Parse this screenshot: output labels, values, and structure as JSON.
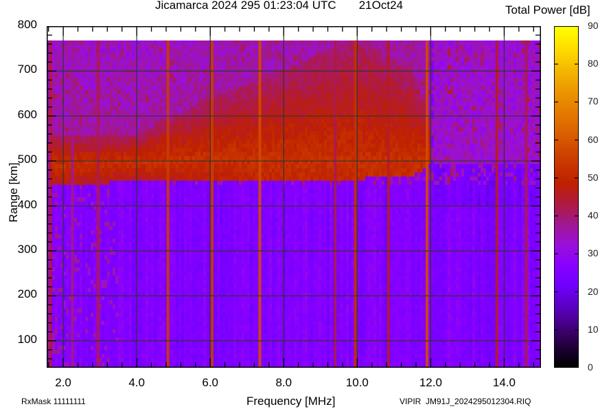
{
  "header": {
    "title": "Jicamarca 2024 295 01:23:04 UTC       21Oct24",
    "colorbar_title": "Total Power [dB]"
  },
  "footer": {
    "rxmask": "RxMask 11111111",
    "file_id": "VIPIR  JM91J_2024295012304.RIQ"
  },
  "chart_data": {
    "type": "heatmap",
    "title": "Jicamarca 2024 295 01:23:04 UTC 21Oct24",
    "xlabel": "Frequency [MHz]",
    "ylabel": "Range [km]",
    "colorbar_label": "Total Power [dB]",
    "xlim": [
      1.55,
      15.0
    ],
    "ylim": [
      40,
      800
    ],
    "clim": [
      0,
      90
    ],
    "x_ticks": [
      "2.0",
      "4.0",
      "6.0",
      "8.0",
      "10.0",
      "12.0",
      "14.0"
    ],
    "y_ticks": [
      "100",
      "200",
      "300",
      "400",
      "500",
      "600",
      "700",
      "800"
    ],
    "colorbar_ticks": [
      "0",
      "10",
      "20",
      "30",
      "40",
      "50",
      "60",
      "70",
      "80",
      "90"
    ],
    "grid": true,
    "data_range_top_km": 768,
    "background_level_db": 25,
    "layer_echo": {
      "description": "Diffuse high-power (~50-55 dB) echo band; lower edge ~455 km, spreading upward with frequency",
      "points": [
        {
          "freq_mhz": 1.6,
          "bottom_km": 445,
          "top_km": 560,
          "peak_km": 490
        },
        {
          "freq_mhz": 2.0,
          "bottom_km": 445,
          "top_km": 560,
          "peak_km": 490
        },
        {
          "freq_mhz": 4.0,
          "bottom_km": 455,
          "top_km": 560,
          "peak_km": 495
        },
        {
          "freq_mhz": 6.0,
          "bottom_km": 455,
          "top_km": 640,
          "peak_km": 510
        },
        {
          "freq_mhz": 8.0,
          "bottom_km": 455,
          "top_km": 700,
          "peak_km": 500
        },
        {
          "freq_mhz": 9.0,
          "bottom_km": 455,
          "top_km": 740,
          "peak_km": 500
        },
        {
          "freq_mhz": 10.0,
          "bottom_km": 460,
          "top_km": 768,
          "peak_km": 495
        },
        {
          "freq_mhz": 11.5,
          "bottom_km": 465,
          "top_km": 700,
          "peak_km": 495
        },
        {
          "freq_mhz": 12.0,
          "bottom_km": 490,
          "top_km": 600,
          "peak_km": 500
        }
      ]
    },
    "interference_lines_mhz": [
      {
        "freq": 1.65,
        "level_db": 45
      },
      {
        "freq": 2.25,
        "level_db": 38
      },
      {
        "freq": 2.95,
        "level_db": 42
      },
      {
        "freq": 4.85,
        "level_db": 55
      },
      {
        "freq": 6.05,
        "level_db": 55
      },
      {
        "freq": 7.35,
        "level_db": 58
      },
      {
        "freq": 9.4,
        "level_db": 42
      },
      {
        "freq": 9.95,
        "level_db": 52
      },
      {
        "freq": 10.85,
        "level_db": 45
      },
      {
        "freq": 11.9,
        "level_db": 58
      },
      {
        "freq": 13.8,
        "level_db": 45
      },
      {
        "freq": 14.6,
        "level_db": 42
      }
    ]
  }
}
